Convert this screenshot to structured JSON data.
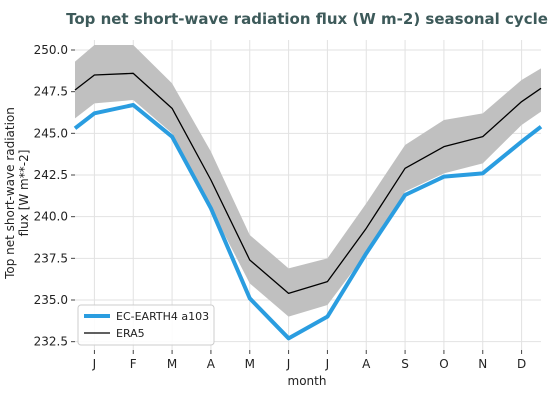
{
  "chart_data": {
    "type": "line",
    "title": "Top net short-wave radiation flux (W m-2) seasonal cycle",
    "xlabel": "month",
    "ylabel_line1": "Top net short-wave radiation",
    "ylabel_line2": "flux [W m**-2]",
    "categories": [
      "J",
      "F",
      "M",
      "A",
      "M",
      "J",
      "J",
      "A",
      "S",
      "O",
      "N",
      "D"
    ],
    "ylim": [
      232,
      250.6
    ],
    "yticks": [
      "232.5",
      "235.0",
      "237.5",
      "240.0",
      "242.5",
      "245.0",
      "247.5",
      "250.0"
    ],
    "ytick_values": [
      232.5,
      235.0,
      237.5,
      240.0,
      242.5,
      245.0,
      247.5,
      250.0
    ],
    "x_range": [
      0.5,
      12.5
    ],
    "series": [
      {
        "name": "EC-EARTH4 a103",
        "color": "#2a9de0",
        "x": [
          0.5,
          1,
          2,
          3,
          4,
          5,
          6,
          7,
          8,
          9,
          10,
          11,
          12,
          12.5
        ],
        "values": [
          245.3,
          246.2,
          246.7,
          244.8,
          240.5,
          235.1,
          232.7,
          234.0,
          237.8,
          241.3,
          242.4,
          242.6,
          244.5,
          245.4
        ]
      },
      {
        "name": "ERA5",
        "color": "#000000",
        "x": [
          0.5,
          1,
          2,
          3,
          4,
          5,
          6,
          7,
          8,
          9,
          10,
          11,
          12,
          12.5
        ],
        "values": [
          247.6,
          248.5,
          248.6,
          246.5,
          242.2,
          237.4,
          235.4,
          236.1,
          239.3,
          242.9,
          244.2,
          244.8,
          246.9,
          247.7
        ]
      }
    ],
    "band": {
      "color": "#c0c0c0",
      "x": [
        0.5,
        1,
        2,
        3,
        4,
        5,
        6,
        7,
        8,
        9,
        10,
        11,
        12,
        12.5
      ],
      "upper": [
        249.3,
        250.3,
        250.3,
        248.0,
        243.9,
        238.9,
        236.9,
        237.5,
        240.8,
        244.3,
        245.8,
        246.2,
        248.2,
        248.9
      ],
      "lower": [
        245.9,
        246.8,
        247.0,
        245.0,
        240.5,
        236.0,
        234.0,
        234.7,
        237.8,
        241.5,
        242.6,
        243.2,
        245.5,
        246.3
      ]
    },
    "grid": true,
    "legend_position": "lower-left"
  }
}
